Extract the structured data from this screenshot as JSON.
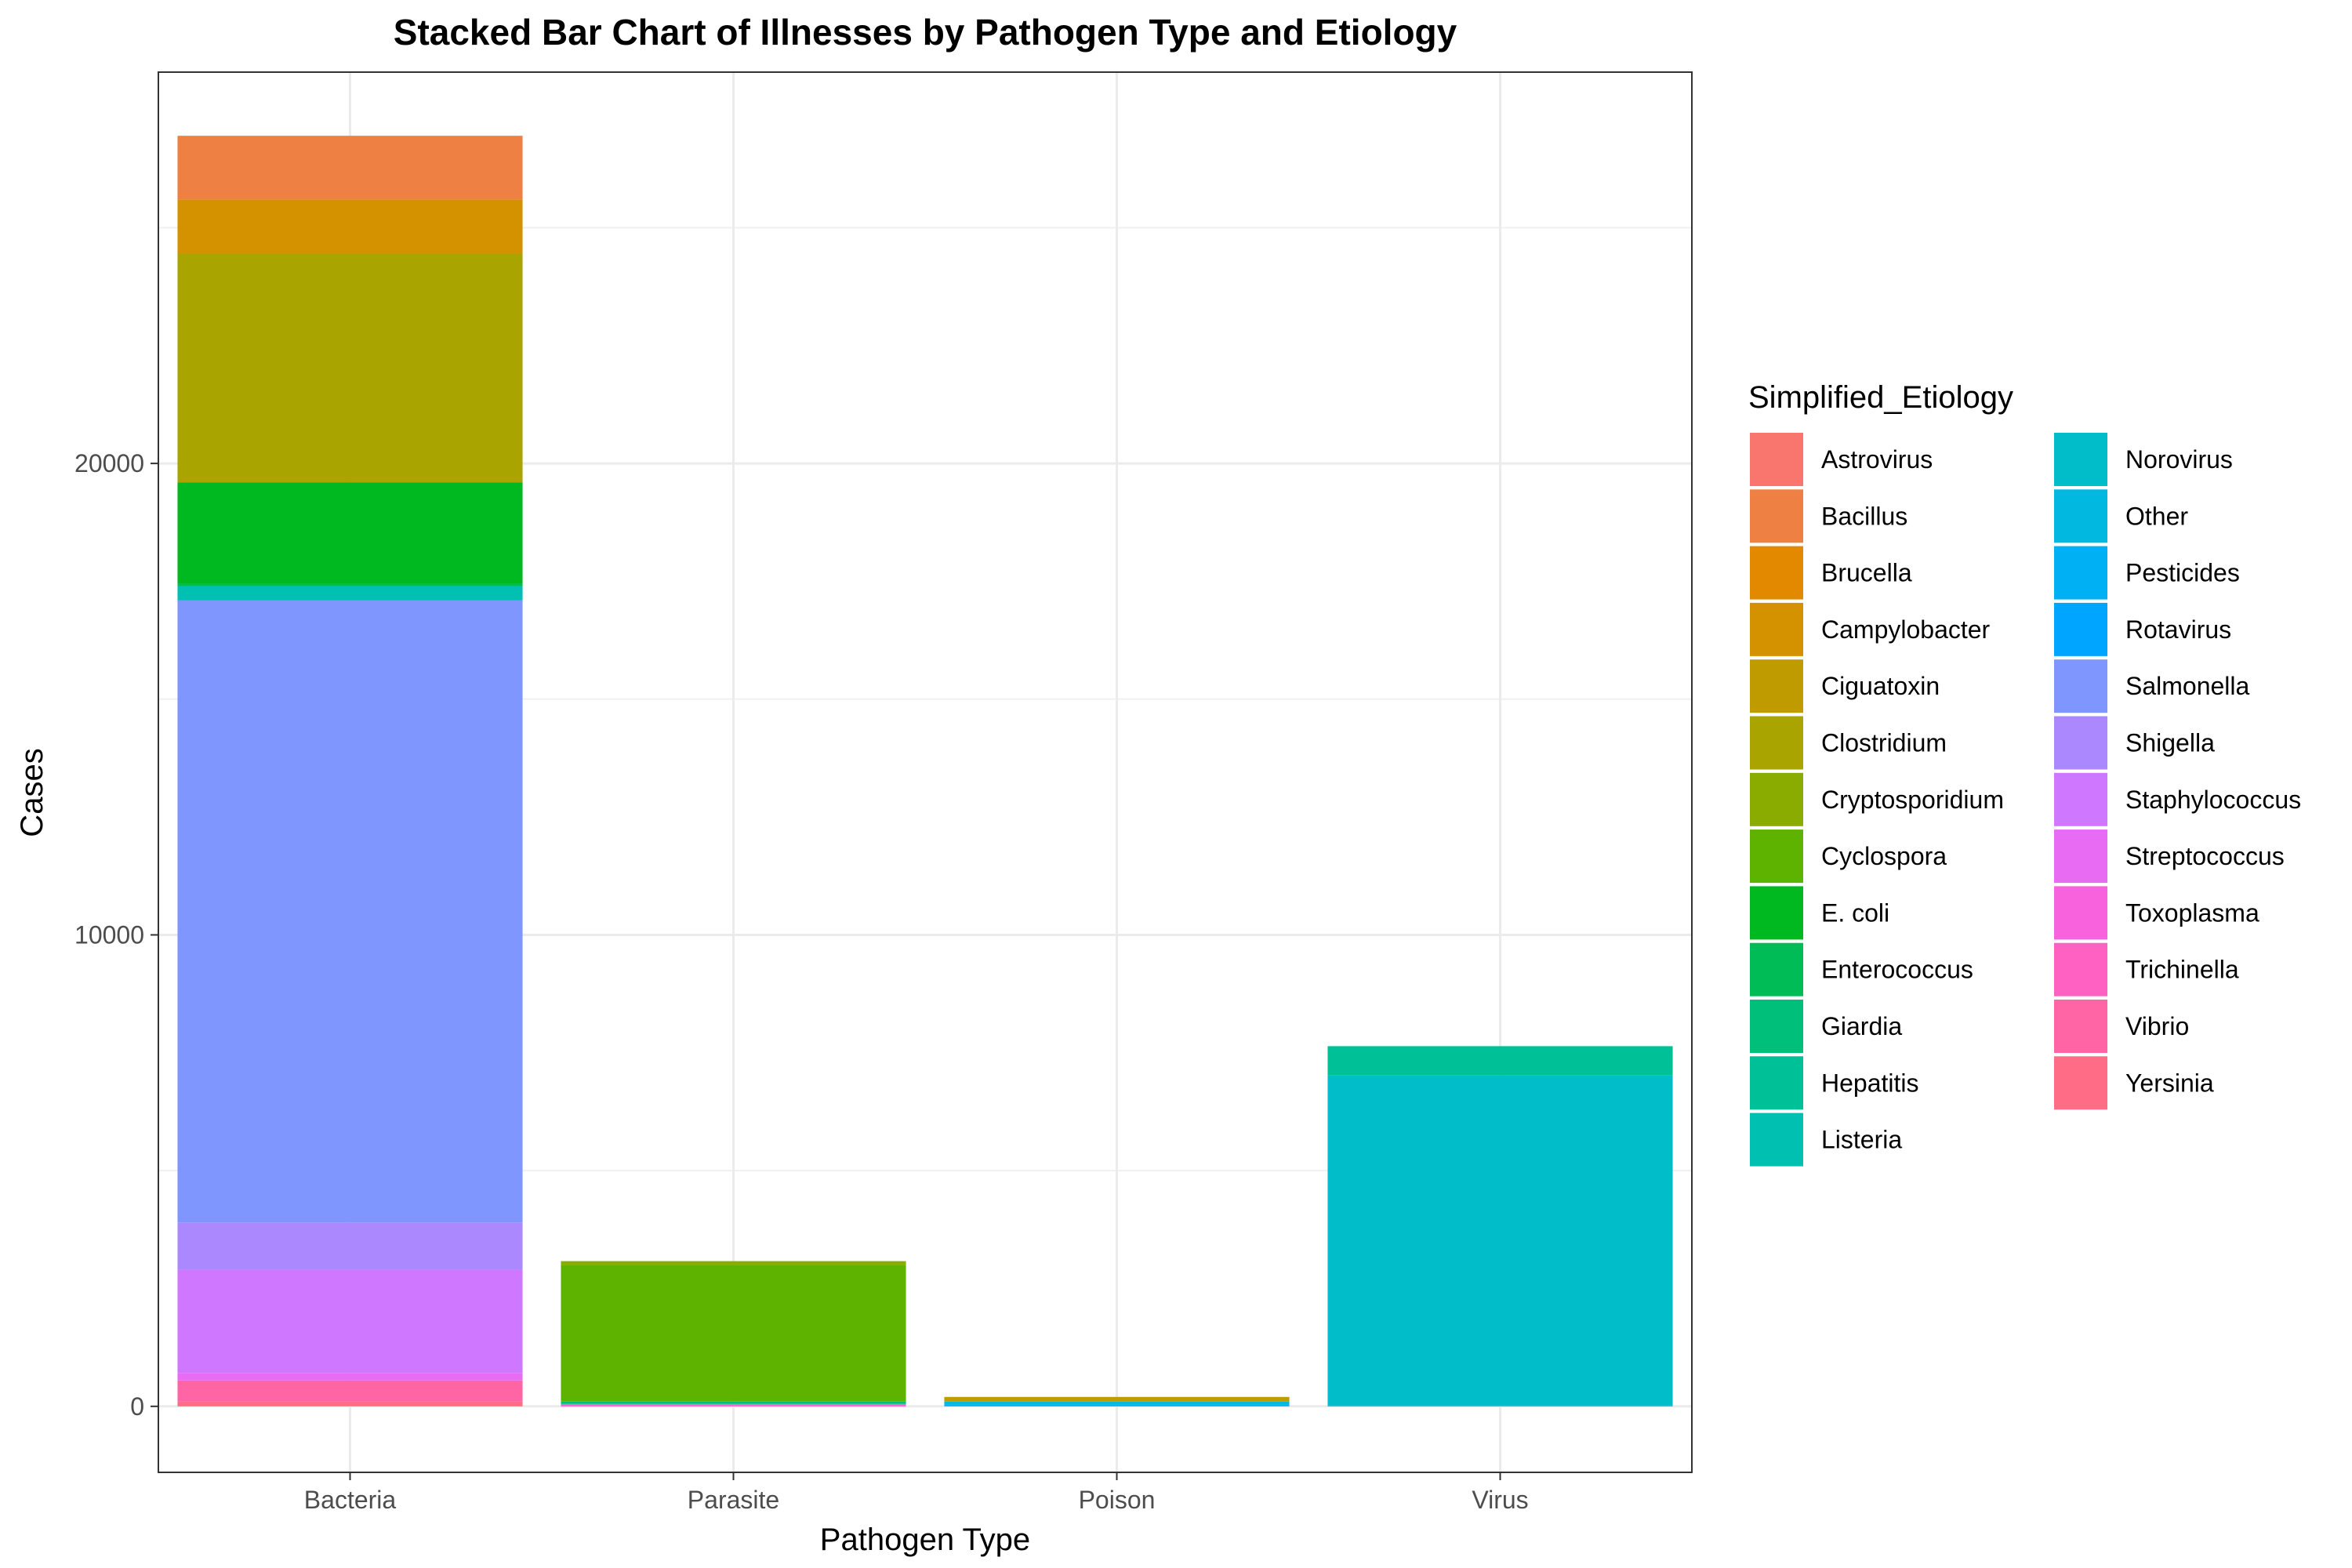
{
  "chart_data": {
    "type": "bar",
    "stacked": true,
    "title": "Stacked Bar Chart of Illnesses by Pathogen Type and Etiology",
    "xlabel": "Pathogen Type",
    "ylabel": "Cases",
    "categories": [
      "Bacteria",
      "Parasite",
      "Poison",
      "Virus"
    ],
    "ylim": [
      -1400,
      28300
    ],
    "yticks": [
      0,
      10000,
      20000
    ],
    "ytick_labels": [
      "0",
      "10000",
      "20000"
    ],
    "grid": true,
    "legend_position": "right",
    "legend_title": "Simplified_Etiology",
    "series": [
      {
        "name": "Astrovirus",
        "color": "#F8766D",
        "values": [
          0,
          0,
          0,
          0
        ]
      },
      {
        "name": "Bacillus",
        "color": "#EE8044",
        "values": [
          1350,
          0,
          0,
          0
        ]
      },
      {
        "name": "Brucella",
        "color": "#E38900",
        "values": [
          0,
          0,
          0,
          0
        ]
      },
      {
        "name": "Campylobacter",
        "color": "#D49200",
        "values": [
          1150,
          0,
          0,
          0
        ]
      },
      {
        "name": "Ciguatoxin",
        "color": "#C09B00",
        "values": [
          0,
          0,
          100,
          0
        ]
      },
      {
        "name": "Clostridium",
        "color": "#A9A400",
        "values": [
          4850,
          0,
          0,
          0
        ]
      },
      {
        "name": "Cryptosporidium",
        "color": "#8AAB00",
        "values": [
          0,
          80,
          0,
          0
        ]
      },
      {
        "name": "Cyclospora",
        "color": "#5EB300",
        "values": [
          0,
          2900,
          0,
          0
        ]
      },
      {
        "name": "E. coli",
        "color": "#00B81F",
        "values": [
          2150,
          0,
          0,
          0
        ]
      },
      {
        "name": "Enterococcus",
        "color": "#00BC56",
        "values": [
          50,
          0,
          0,
          0
        ]
      },
      {
        "name": "Giardia",
        "color": "#00BF7A",
        "values": [
          0,
          50,
          0,
          0
        ]
      },
      {
        "name": "Hepatitis",
        "color": "#00C098",
        "values": [
          0,
          0,
          0,
          620
        ]
      },
      {
        "name": "Listeria",
        "color": "#00C0B2",
        "values": [
          300,
          0,
          0,
          0
        ]
      },
      {
        "name": "Norovirus",
        "color": "#00BDCA",
        "values": [
          0,
          0,
          0,
          7000
        ]
      },
      {
        "name": "Other",
        "color": "#00B8E0",
        "values": [
          0,
          0,
          60,
          20
        ]
      },
      {
        "name": "Pesticides",
        "color": "#00B0F5",
        "values": [
          0,
          0,
          40,
          0
        ]
      },
      {
        "name": "Rotavirus",
        "color": "#00A5FF",
        "values": [
          0,
          0,
          0,
          0
        ]
      },
      {
        "name": "Salmonella",
        "color": "#7F96FF",
        "values": [
          13200,
          0,
          0,
          0
        ]
      },
      {
        "name": "Shigella",
        "color": "#AC88FF",
        "values": [
          1000,
          20,
          0,
          0
        ]
      },
      {
        "name": "Staphylococcus",
        "color": "#CF78FF",
        "values": [
          2200,
          0,
          0,
          0
        ]
      },
      {
        "name": "Streptococcus",
        "color": "#E76BF3",
        "values": [
          150,
          0,
          0,
          0
        ]
      },
      {
        "name": "Toxoplasma",
        "color": "#F962DD",
        "values": [
          0,
          20,
          0,
          0
        ]
      },
      {
        "name": "Trichinella",
        "color": "#FF61C3",
        "values": [
          0,
          10,
          0,
          0
        ]
      },
      {
        "name": "Vibrio",
        "color": "#FF65A5",
        "values": [
          450,
          0,
          0,
          0
        ]
      },
      {
        "name": "Yersinia",
        "color": "#FF6C86",
        "values": [
          100,
          0,
          0,
          0
        ]
      }
    ]
  }
}
